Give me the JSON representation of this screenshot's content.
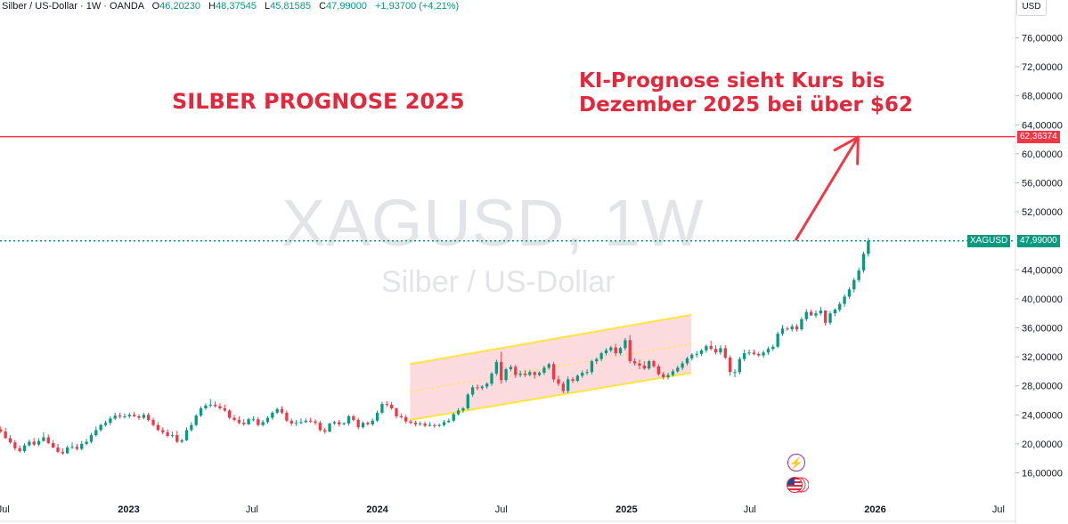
{
  "header": {
    "symbol": "Silber / US-Dollar · 1W · OANDA",
    "open_label": "O",
    "open": "46,20230",
    "high_label": "H",
    "high": "48,37545",
    "low_label": "L",
    "low": "45,81585",
    "close_label": "C",
    "close": "47,99000",
    "change": "+1,93700 (+4,21%)"
  },
  "currency": "USD",
  "watermark": {
    "ticker": "XAGUSD, 1W",
    "name": "Silber / US-Dollar"
  },
  "title": "SILBER PROGNOSE 2025",
  "annotation": {
    "line1": "KI-Prognose sieht Kurs bis",
    "line2": "Dezember 2025 bei über $62"
  },
  "price_tags": {
    "target": {
      "value": "62,36374",
      "color": "#f23645"
    },
    "current": {
      "symbol": "XAGUSD",
      "value": "47,99000",
      "color": "#089981"
    }
  },
  "icons": {
    "event": "lightning-icon",
    "country": "us-flag-icon"
  },
  "colors": {
    "up": "#089981",
    "down": "#f23645",
    "channel_fill": "#fbd5d9",
    "channel_line": "#ffe53b",
    "accent": "#e0293c"
  },
  "chart_data": {
    "type": "candlestick",
    "interval": "1W",
    "y_axis": {
      "ticks": [
        16,
        20,
        24,
        28,
        32,
        36,
        40,
        44,
        52,
        56,
        60,
        64,
        68,
        72,
        76
      ],
      "tick_labels": [
        "16,00000",
        "20,00000",
        "24,00000",
        "28,00000",
        "32,00000",
        "36,00000",
        "40,00000",
        "44,00000",
        "52,00000",
        "56,00000",
        "60,00000",
        "64,00000",
        "68,00000",
        "72,00000",
        "76,00000"
      ],
      "range": [
        13,
        79
      ],
      "position": "right"
    },
    "x_axis": {
      "range": [
        "2022-06-26",
        "2026-07-26"
      ],
      "ticks": [
        {
          "date": "2022-07-01",
          "label": "Jul",
          "bold": false
        },
        {
          "date": "2023-01-01",
          "label": "2023",
          "bold": true
        },
        {
          "date": "2023-07-01",
          "label": "Jul",
          "bold": false
        },
        {
          "date": "2024-01-01",
          "label": "2024",
          "bold": true
        },
        {
          "date": "2024-07-01",
          "label": "Jul",
          "bold": false
        },
        {
          "date": "2025-01-01",
          "label": "2025",
          "bold": true
        },
        {
          "date": "2025-07-01",
          "label": "Jul",
          "bold": false
        },
        {
          "date": "2026-01-01",
          "label": "2026",
          "bold": true
        },
        {
          "date": "2026-07-01",
          "label": "Jul",
          "bold": false
        }
      ]
    },
    "candles": {
      "first_week": "2022-06-27",
      "o": [
        22.0,
        21.7,
        20.8,
        20.2,
        19.4,
        19.0,
        19.8,
        20.3,
        19.9,
        20.4,
        20.9,
        20.1,
        19.5,
        18.9,
        18.7,
        19.5,
        19.6,
        19.3,
        20.0,
        20.3,
        21.2,
        21.9,
        22.6,
        22.9,
        23.5,
        23.9,
        23.8,
        23.8,
        24.0,
        23.8,
        23.6,
        24.0,
        23.3,
        22.6,
        21.9,
        21.6,
        21.1,
        21.2,
        20.3,
        20.5,
        21.9,
        22.6,
        23.9,
        24.9,
        25.3,
        25.4,
        25.2,
        24.9,
        24.6,
        23.6,
        23.3,
        22.9,
        22.7,
        23.4,
        23.4,
        22.6,
        23.0,
        23.6,
        24.3,
        24.8,
        24.3,
        23.2,
        22.8,
        22.9,
        23.0,
        23.2,
        23.1,
        22.9,
        21.9,
        21.7,
        22.8,
        23.0,
        22.7,
        22.8,
        23.8,
        23.3,
        22.3,
        22.9,
        22.7,
        23.2,
        24.3,
        25.5,
        25.4,
        24.9,
        23.8,
        23.7,
        23.1,
        22.9,
        22.7,
        22.8,
        22.5,
        22.6,
        22.5,
        22.6,
        23.0,
        23.2,
        24.1,
        24.6,
        24.9,
        26.8,
        27.8,
        27.7,
        27.9,
        28.3,
        29.7,
        31.3,
        28.8,
        30.3,
        30.6,
        29.5,
        29.7,
        29.5,
        29.9,
        29.5,
        29.8,
        30.5,
        31.0,
        28.9,
        28.3,
        27.3,
        28.9,
        28.7,
        29.4,
        29.8,
        29.9,
        31.4,
        31.7,
        32.5,
        32.9,
        33.3,
        32.5,
        33.2,
        34.3,
        31.4,
        31.1,
        30.8,
        30.4,
        31.4,
        30.7,
        29.6,
        29.2,
        29.5,
        30.0,
        30.5,
        31.1,
        31.8,
        32.3,
        32.4,
        32.9,
        33.5,
        33.1,
        32.6,
        33.2,
        31.9,
        29.9,
        29.9,
        31.7,
        32.5,
        32.6,
        32.4,
        32.2,
        32.6,
        33.1,
        33.4,
        35.2,
        35.9,
        35.8,
        36.2,
        35.8,
        37.2,
        38.2,
        37.7,
        38.0,
        38.4,
        36.7,
        38.0,
        38.5,
        39.3,
        40.3,
        41.3,
        42.6,
        43.9,
        46.2
      ],
      "h": [
        22.4,
        22.2,
        21.2,
        20.5,
        19.8,
        20.1,
        20.6,
        20.8,
        20.8,
        21.6,
        21.3,
        20.5,
        20.0,
        19.4,
        19.8,
        20.2,
        20.0,
        20.4,
        20.7,
        21.5,
        22.4,
        22.8,
        23.2,
        23.8,
        24.3,
        24.3,
        24.2,
        24.3,
        24.4,
        24.1,
        24.3,
        24.3,
        23.6,
        23.0,
        22.3,
        22.0,
        21.7,
        21.8,
        20.7,
        22.3,
        23.0,
        24.1,
        25.2,
        25.6,
        26.2,
        25.9,
        25.6,
        25.4,
        24.8,
        24.0,
        23.8,
        23.4,
        23.6,
        23.8,
        23.7,
        23.3,
        23.8,
        24.5,
        25.0,
        25.2,
        24.6,
        23.5,
        23.3,
        23.5,
        23.5,
        23.6,
        23.4,
        23.2,
        22.2,
        22.9,
        23.2,
        23.3,
        23.0,
        24.0,
        24.0,
        23.6,
        23.1,
        23.1,
        23.5,
        24.6,
        25.8,
        25.9,
        25.8,
        25.0,
        24.2,
        24.0,
        23.3,
        23.2,
        23.1,
        23.1,
        23.0,
        22.8,
        22.8,
        23.3,
        23.5,
        24.3,
        24.9,
        25.1,
        27.0,
        28.1,
        28.2,
        28.1,
        28.5,
        29.9,
        31.6,
        32.7,
        30.5,
        30.9,
        30.9,
        30.1,
        30.2,
        30.2,
        30.0,
        30.0,
        30.8,
        31.2,
        31.3,
        29.4,
        28.6,
        29.3,
        29.2,
        29.6,
        30.1,
        30.3,
        31.6,
        31.9,
        32.7,
        33.2,
        33.5,
        33.8,
        33.4,
        34.6,
        35.0,
        31.8,
        31.6,
        31.4,
        31.6,
        31.6,
        31.0,
        29.9,
        29.8,
        30.3,
        30.8,
        31.4,
        32.0,
        32.5,
        32.8,
        33.1,
        33.7,
        34.2,
        33.6,
        33.6,
        33.6,
        32.2,
        30.3,
        32.0,
        33.0,
        33.0,
        33.0,
        32.7,
        32.9,
        33.4,
        33.7,
        35.5,
        36.4,
        36.2,
        36.5,
        36.5,
        37.5,
        38.6,
        38.5,
        38.4,
        38.9,
        38.4,
        38.3,
        38.7,
        39.6,
        40.6,
        41.6,
        42.9,
        44.3,
        46.5,
        48.4
      ],
      "l": [
        21.5,
        20.7,
        20.0,
        19.1,
        18.8,
        18.8,
        19.6,
        19.7,
        19.7,
        20.3,
        20.0,
        19.4,
        18.7,
        18.5,
        18.6,
        19.3,
        19.1,
        19.1,
        19.8,
        20.1,
        21.0,
        21.7,
        22.4,
        22.6,
        23.3,
        23.5,
        23.5,
        23.5,
        23.7,
        23.3,
        23.4,
        23.1,
        22.4,
        21.8,
        21.3,
        20.9,
        20.9,
        20.1,
        20.1,
        20.4,
        21.7,
        22.4,
        23.7,
        24.7,
        25.0,
        25.0,
        24.7,
        24.4,
        23.4,
        23.1,
        22.7,
        22.5,
        22.6,
        23.1,
        22.4,
        22.4,
        22.8,
        23.3,
        24.1,
        24.1,
        23.0,
        22.5,
        22.5,
        22.7,
        22.9,
        22.9,
        22.6,
        21.7,
        21.4,
        21.6,
        22.6,
        22.4,
        22.6,
        22.5,
        23.1,
        22.0,
        22.1,
        22.5,
        22.5,
        23.0,
        24.1,
        25.1,
        24.7,
        23.5,
        23.5,
        22.8,
        22.7,
        22.4,
        22.5,
        22.3,
        22.4,
        22.2,
        22.3,
        22.4,
        22.9,
        23.0,
        23.9,
        24.3,
        24.7,
        26.5,
        27.4,
        27.4,
        27.6,
        28.0,
        29.4,
        28.3,
        28.5,
        30.0,
        29.1,
        29.2,
        29.2,
        29.3,
        29.0,
        29.3,
        29.5,
        30.2,
        28.5,
        28.0,
        27.0,
        27.0,
        28.4,
        28.5,
        29.1,
        29.5,
        29.6,
        31.0,
        31.4,
        32.2,
        32.6,
        32.1,
        32.2,
        32.9,
        31.1,
        30.8,
        30.3,
        30.2,
        30.2,
        30.5,
        29.4,
        28.9,
        28.9,
        29.3,
        29.8,
        30.2,
        30.8,
        31.5,
        31.9,
        32.1,
        32.6,
        32.9,
        32.3,
        32.3,
        31.7,
        29.4,
        29.2,
        29.6,
        31.4,
        32.2,
        32.2,
        32.0,
        31.9,
        32.3,
        32.8,
        33.2,
        34.9,
        35.6,
        35.5,
        35.5,
        35.6,
        36.9,
        37.8,
        37.4,
        37.7,
        36.3,
        36.4,
        37.6,
        38.2,
        38.9,
        40.0,
        40.9,
        42.3,
        43.6,
        45.8
      ],
      "c": [
        21.7,
        20.8,
        20.2,
        19.4,
        19.0,
        19.8,
        20.3,
        19.9,
        20.4,
        20.9,
        20.1,
        19.5,
        18.9,
        18.7,
        19.5,
        19.6,
        19.3,
        20.0,
        20.3,
        21.2,
        21.9,
        22.6,
        22.9,
        23.5,
        23.9,
        23.8,
        23.8,
        24.0,
        23.8,
        23.6,
        24.0,
        23.3,
        22.6,
        21.9,
        21.6,
        21.1,
        21.2,
        20.3,
        20.5,
        21.9,
        22.6,
        23.9,
        24.9,
        25.3,
        25.4,
        25.2,
        24.9,
        24.6,
        23.6,
        23.3,
        22.9,
        22.7,
        23.4,
        23.4,
        22.6,
        23.0,
        23.6,
        24.3,
        24.8,
        24.3,
        23.2,
        22.8,
        22.9,
        23.0,
        23.2,
        23.1,
        22.9,
        21.9,
        21.7,
        22.8,
        23.0,
        22.7,
        22.8,
        23.8,
        23.3,
        22.3,
        22.9,
        22.7,
        23.2,
        24.3,
        25.5,
        25.4,
        24.9,
        23.8,
        23.7,
        23.1,
        22.9,
        22.7,
        22.8,
        22.5,
        22.6,
        22.5,
        22.6,
        23.0,
        23.2,
        24.1,
        24.6,
        24.9,
        26.8,
        27.8,
        27.7,
        27.9,
        28.3,
        29.7,
        31.3,
        28.8,
        30.3,
        30.6,
        29.5,
        29.7,
        29.5,
        29.9,
        29.5,
        29.8,
        30.5,
        31.0,
        28.9,
        28.3,
        27.3,
        28.9,
        28.7,
        29.4,
        29.8,
        29.9,
        31.4,
        31.7,
        32.5,
        32.9,
        33.3,
        32.5,
        33.2,
        34.3,
        31.4,
        31.1,
        30.8,
        30.4,
        31.4,
        30.7,
        29.6,
        29.2,
        29.5,
        30.0,
        30.5,
        31.1,
        31.8,
        32.3,
        32.4,
        32.9,
        33.5,
        33.1,
        32.6,
        33.2,
        31.9,
        29.9,
        29.9,
        31.7,
        32.5,
        32.6,
        32.4,
        32.2,
        32.6,
        33.1,
        33.4,
        35.2,
        35.9,
        35.8,
        36.2,
        35.8,
        37.2,
        38.2,
        37.7,
        38.0,
        38.4,
        36.7,
        38.0,
        38.5,
        39.3,
        40.3,
        41.3,
        42.6,
        43.9,
        46.2,
        47.99
      ]
    },
    "lines": [
      {
        "kind": "horizontal",
        "value": 62.36374,
        "style": "solid",
        "color": "#f23645"
      },
      {
        "kind": "horizontal",
        "value": 47.99,
        "style": "dotted",
        "color": "#089981"
      }
    ],
    "channel": {
      "upper": [
        [
          "2024-02-18",
          31.0
        ],
        [
          "2025-04-06",
          37.8
        ]
      ],
      "lower": [
        [
          "2024-02-18",
          23.3
        ],
        [
          "2025-04-06",
          29.8
        ]
      ],
      "mid": [
        [
          "2024-02-18",
          27.2
        ],
        [
          "2025-04-06",
          33.8
        ]
      ]
    },
    "arrow": {
      "from": [
        "2025-09-07",
        48.2
      ],
      "to": [
        "2025-12-07",
        62.3
      ]
    }
  }
}
